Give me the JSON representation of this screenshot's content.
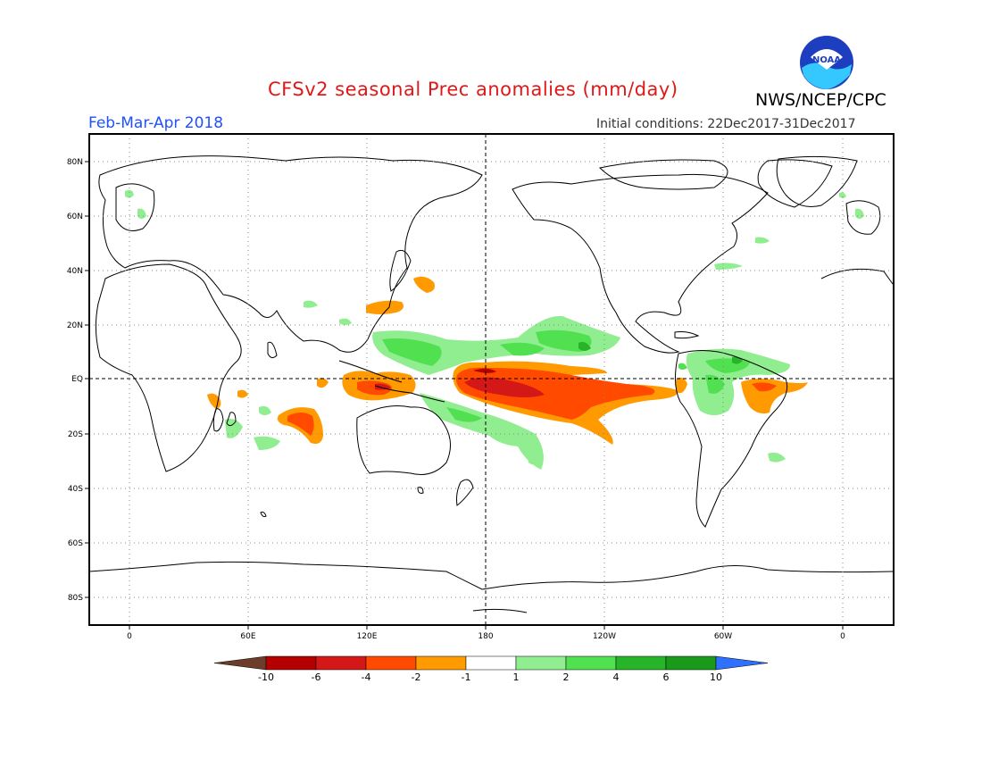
{
  "header": {
    "title": "CFSv2 seasonal Prec anomalies (mm/day)",
    "period": "Feb-Mar-Apr 2018",
    "initial_conditions": "Initial conditions: 22Dec2017-31Dec2017",
    "agency": "NWS/NCEP/CPC",
    "logo_text": "NOAA"
  },
  "map": {
    "lon_labels": [
      "0",
      "60E",
      "120E",
      "180",
      "120W",
      "60W",
      "0"
    ],
    "lat_labels": [
      "80N",
      "60N",
      "40N",
      "20N",
      "EQ",
      "20S",
      "40S",
      "60S",
      "80S"
    ],
    "grid": "dotted",
    "reference_lines": [
      "equator",
      "dateline"
    ]
  },
  "legend": {
    "labels": [
      "-10",
      "-6",
      "-4",
      "-2",
      "-1",
      "1",
      "2",
      "4",
      "6",
      "10"
    ],
    "colors": [
      "#6b3d2a",
      "#b40000",
      "#d41818",
      "#ff4a00",
      "#ff9a00",
      "#ffffff",
      "#90ee90",
      "#50e050",
      "#28b428",
      "#1a9a1a",
      "#3070ff"
    ]
  },
  "colors": {
    "dry_strong": "#d41818",
    "dry_mid": "#ff4a00",
    "dry_light": "#ff9a00",
    "wet_light": "#90ee90",
    "wet_mid": "#50e050",
    "wet_strong": "#28b428"
  }
}
